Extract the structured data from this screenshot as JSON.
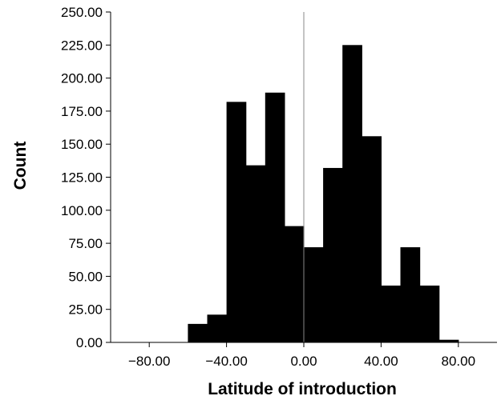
{
  "chart_data": {
    "type": "bar",
    "title": "",
    "xlabel": "Latitude of introduction",
    "ylabel": "Count",
    "bin_width": 10,
    "bins": [
      {
        "x0": -60,
        "x1": -50,
        "value": 14
      },
      {
        "x0": -50,
        "x1": -40,
        "value": 21
      },
      {
        "x0": -40,
        "x1": -30,
        "value": 182
      },
      {
        "x0": -30,
        "x1": -20,
        "value": 134
      },
      {
        "x0": -20,
        "x1": -10,
        "value": 189
      },
      {
        "x0": -10,
        "x1": 0,
        "value": 88
      },
      {
        "x0": 0,
        "x1": 10,
        "value": 72
      },
      {
        "x0": 10,
        "x1": 20,
        "value": 132
      },
      {
        "x0": 20,
        "x1": 30,
        "value": 225
      },
      {
        "x0": 30,
        "x1": 40,
        "value": 156
      },
      {
        "x0": 40,
        "x1": 50,
        "value": 43
      },
      {
        "x0": 50,
        "x1": 60,
        "value": 72
      },
      {
        "x0": 60,
        "x1": 70,
        "value": 43
      },
      {
        "x0": 70,
        "x1": 80,
        "value": 2
      }
    ],
    "xlim": [
      -100,
      100
    ],
    "ylim": [
      0,
      250
    ],
    "x_ticks": [
      "−80.00",
      "−40.00",
      "0.00",
      "40.00",
      "80.00"
    ],
    "x_tick_values": [
      -80,
      -40,
      0,
      40,
      80
    ],
    "y_ticks": [
      "0.00",
      "25.00",
      "50.00",
      "75.00",
      "100.00",
      "125.00",
      "150.00",
      "175.00",
      "200.00",
      "225.00",
      "250.00"
    ],
    "y_tick_values": [
      0,
      25,
      50,
      75,
      100,
      125,
      150,
      175,
      200,
      225,
      250
    ],
    "reference_line_x": 0,
    "grid": false,
    "bar_color": "#000000",
    "reference_line_color": "#888888"
  }
}
